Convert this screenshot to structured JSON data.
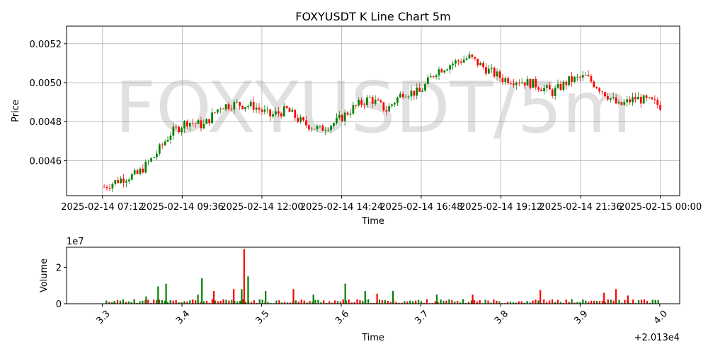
{
  "chart_data": [
    {
      "type": "candlestick",
      "title": "FOXYUSDT K Line Chart 5m",
      "watermark": "FOXYUSDT/5m",
      "xlabel": "Time",
      "ylabel": "Price",
      "x_ticks": [
        "2025-02-14 07:12",
        "2025-02-14 09:36",
        "2025-02-14 12:00",
        "2025-02-14 14:24",
        "2025-02-14 16:48",
        "2025-02-14 19:12",
        "2025-02-14 21:36",
        "2025-02-15 00:00"
      ],
      "x_range": [
        "2025-02-14 06:07",
        "2025-02-15 00:35"
      ],
      "y_ticks": [
        "0.0046",
        "0.0048",
        "0.0050",
        "0.0052"
      ],
      "ylim": [
        0.00442,
        0.00529
      ],
      "grid": true,
      "up_color": "#008000",
      "down_color": "#ff0000",
      "series": [
        {
          "time": "2025-02-14 07:15",
          "close": 0.004465
        },
        {
          "time": "2025-02-14 07:45",
          "close": 0.004505
        },
        {
          "time": "2025-02-14 08:15",
          "close": 0.00453
        },
        {
          "time": "2025-02-14 08:45",
          "close": 0.00462
        },
        {
          "time": "2025-02-14 09:15",
          "close": 0.00474
        },
        {
          "time": "2025-02-14 09:45",
          "close": 0.0048
        },
        {
          "time": "2025-02-14 10:15",
          "close": 0.00478
        },
        {
          "time": "2025-02-14 10:45",
          "close": 0.00488
        },
        {
          "time": "2025-02-14 11:15",
          "close": 0.00489
        },
        {
          "time": "2025-02-14 11:45",
          "close": 0.00488
        },
        {
          "time": "2025-02-14 12:15",
          "close": 0.00483
        },
        {
          "time": "2025-02-14 12:45",
          "close": 0.00486
        },
        {
          "time": "2025-02-14 13:15",
          "close": 0.00479
        },
        {
          "time": "2025-02-14 13:45",
          "close": 0.00476
        },
        {
          "time": "2025-02-14 14:15",
          "close": 0.0048
        },
        {
          "time": "2025-02-14 14:45",
          "close": 0.00487
        },
        {
          "time": "2025-02-14 15:15",
          "close": 0.00492
        },
        {
          "time": "2025-02-14 15:45",
          "close": 0.00486
        },
        {
          "time": "2025-02-14 16:15",
          "close": 0.00495
        },
        {
          "time": "2025-02-14 16:45",
          "close": 0.00495
        },
        {
          "time": "2025-02-14 17:15",
          "close": 0.00506
        },
        {
          "time": "2025-02-14 17:45",
          "close": 0.0051
        },
        {
          "time": "2025-02-14 18:15",
          "close": 0.00513
        },
        {
          "time": "2025-02-14 18:45",
          "close": 0.00507
        },
        {
          "time": "2025-02-14 19:15",
          "close": 0.00502
        },
        {
          "time": "2025-02-14 19:45",
          "close": 0.00501
        },
        {
          "time": "2025-02-14 20:15",
          "close": 0.00499
        },
        {
          "time": "2025-02-14 20:45",
          "close": 0.00495
        },
        {
          "time": "2025-02-14 21:15",
          "close": 0.00501
        },
        {
          "time": "2025-02-14 21:45",
          "close": 0.00503
        },
        {
          "time": "2025-02-14 22:15",
          "close": 0.00496
        },
        {
          "time": "2025-02-14 22:45",
          "close": 0.00488
        },
        {
          "time": "2025-02-14 23:15",
          "close": 0.00492
        },
        {
          "time": "2025-02-14 23:45",
          "close": 0.0049
        },
        {
          "time": "2025-02-15 00:00",
          "close": 0.00488
        }
      ]
    },
    {
      "type": "bar",
      "xlabel": "Time",
      "ylabel": "Volume",
      "y_multiplier": "1e7",
      "x_offset_label": "+2.013e4",
      "x_ticks": [
        "3.3",
        "3.4",
        "3.5",
        "3.6",
        "3.7",
        "3.8",
        "3.9",
        "4.0"
      ],
      "x_range": [
        20133.255,
        20134.025
      ],
      "y_ticks": [
        "0",
        "2"
      ],
      "ylim": [
        0,
        31000000
      ],
      "up_color": "#008000",
      "down_color": "#ff0000",
      "series": [
        {
          "x": 20133.315,
          "volume": 1500000,
          "dir": "up"
        },
        {
          "x": 20133.34,
          "volume": 2500000,
          "dir": "up"
        },
        {
          "x": 20133.355,
          "volume": 4000000,
          "dir": "up"
        },
        {
          "x": 20133.37,
          "volume": 9500000,
          "dir": "up"
        },
        {
          "x": 20133.38,
          "volume": 11000000,
          "dir": "up"
        },
        {
          "x": 20133.42,
          "volume": 5000000,
          "dir": "up"
        },
        {
          "x": 20133.425,
          "volume": 14000000,
          "dir": "up"
        },
        {
          "x": 20133.44,
          "volume": 7000000,
          "dir": "down"
        },
        {
          "x": 20133.465,
          "volume": 8000000,
          "dir": "down"
        },
        {
          "x": 20133.475,
          "volume": 8000000,
          "dir": "up"
        },
        {
          "x": 20133.478,
          "volume": 30000000,
          "dir": "down"
        },
        {
          "x": 20133.483,
          "volume": 15000000,
          "dir": "up"
        },
        {
          "x": 20133.505,
          "volume": 7000000,
          "dir": "up"
        },
        {
          "x": 20133.54,
          "volume": 8000000,
          "dir": "down"
        },
        {
          "x": 20133.565,
          "volume": 5000000,
          "dir": "up"
        },
        {
          "x": 20133.605,
          "volume": 11000000,
          "dir": "up"
        },
        {
          "x": 20133.63,
          "volume": 7000000,
          "dir": "up"
        },
        {
          "x": 20133.645,
          "volume": 5500000,
          "dir": "down"
        },
        {
          "x": 20133.665,
          "volume": 7000000,
          "dir": "up"
        },
        {
          "x": 20133.72,
          "volume": 5000000,
          "dir": "up"
        },
        {
          "x": 20133.765,
          "volume": 5000000,
          "dir": "down"
        },
        {
          "x": 20133.85,
          "volume": 7500000,
          "dir": "down"
        },
        {
          "x": 20133.93,
          "volume": 6000000,
          "dir": "down"
        },
        {
          "x": 20133.945,
          "volume": 8000000,
          "dir": "down"
        },
        {
          "x": 20133.96,
          "volume": 4500000,
          "dir": "down"
        }
      ]
    }
  ]
}
